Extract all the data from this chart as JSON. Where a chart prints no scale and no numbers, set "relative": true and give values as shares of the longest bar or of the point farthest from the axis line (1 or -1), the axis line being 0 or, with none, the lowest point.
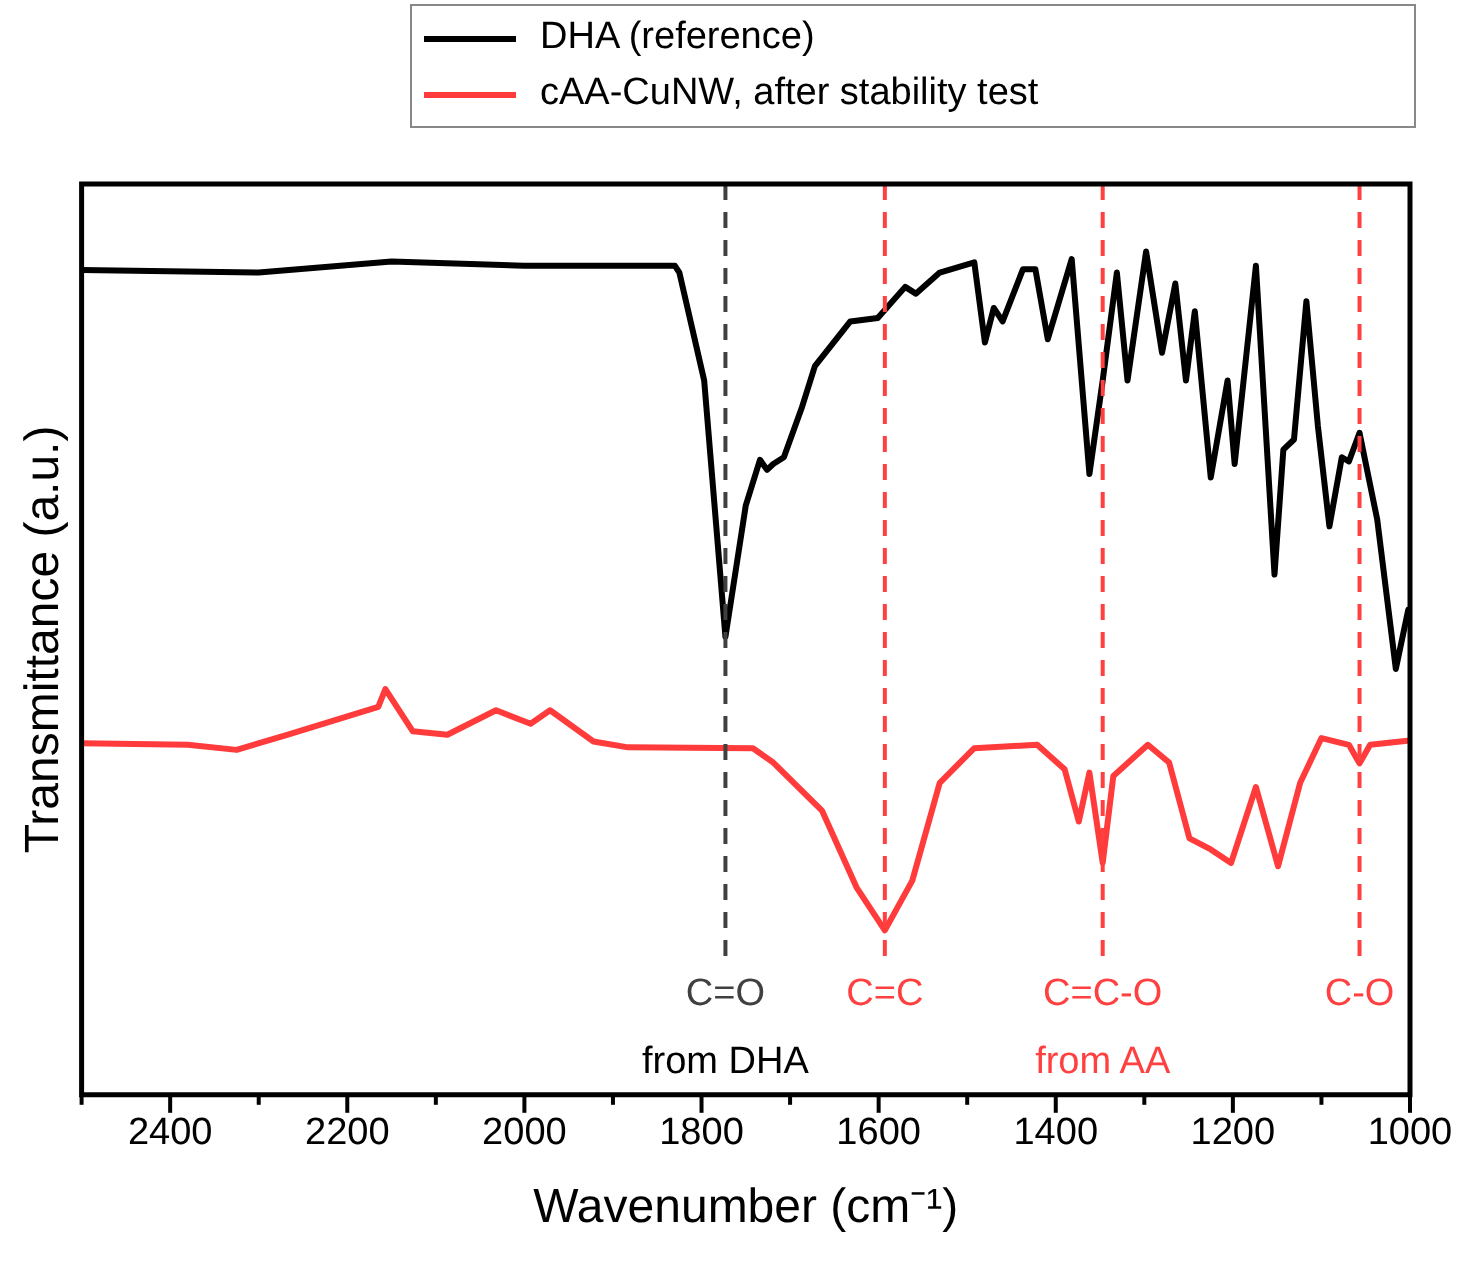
{
  "chart_data": {
    "type": "line",
    "relative": true,
    "xlabel": "Wavenumber (cm⁻¹)",
    "ylabel": "Transmittance (a.u.)",
    "xlim": [
      2500,
      1000
    ],
    "xticks": [
      {
        "value": 2500,
        "label": null
      },
      2400,
      {
        "value": 2300,
        "label": null
      },
      2200,
      {
        "value": 2100,
        "label": null
      },
      2000,
      {
        "value": 1900,
        "label": null
      },
      1800,
      {
        "value": 1700,
        "label": null
      },
      1600,
      {
        "value": 1500,
        "label": null
      },
      1400,
      {
        "value": 1300,
        "label": null
      },
      1200,
      {
        "value": 1100,
        "label": null
      },
      1000
    ],
    "legend": "top",
    "grid": false,
    "marker": "none",
    "line_style": "solid",
    "series": [
      {
        "name": "DHA (reference)",
        "color": "#000000",
        "x": [
          2500,
          2300,
          2150,
          2000,
          1830,
          1825,
          1797,
          1773,
          1750,
          1734,
          1726,
          1719,
          1707,
          1687,
          1672,
          1632,
          1601,
          1570,
          1558,
          1531,
          1492,
          1480,
          1470,
          1460,
          1437,
          1423,
          1409,
          1382,
          1362,
          1347,
          1331,
          1319,
          1298,
          1280,
          1265,
          1253,
          1243,
          1225,
          1206,
          1198,
          1174,
          1153,
          1143,
          1131,
          1117,
          1104,
          1091,
          1077,
          1069,
          1057,
          1037,
          1016,
          1002
        ],
        "values": [
          0.978,
          0.975,
          0.988,
          0.983,
          0.983,
          0.975,
          0.847,
          0.543,
          0.699,
          0.753,
          0.741,
          0.748,
          0.756,
          0.814,
          0.864,
          0.917,
          0.921,
          0.958,
          0.95,
          0.975,
          0.987,
          0.892,
          0.933,
          0.917,
          0.979,
          0.979,
          0.896,
          0.991,
          0.736,
          0.847,
          0.975,
          0.847,
          1.0,
          0.88,
          0.962,
          0.847,
          0.929,
          0.732,
          0.847,
          0.748,
          0.983,
          0.617,
          0.765,
          0.777,
          0.941,
          0.793,
          0.674,
          0.756,
          0.751,
          0.785,
          0.682,
          0.505,
          0.575
        ]
      },
      {
        "name": "cAA-CuNW, after stability test",
        "color": "#ff3b3b",
        "x": [
          2500,
          2380,
          2325,
          2267,
          2165,
          2157,
          2126,
          2087,
          2032,
          1993,
          1971,
          1922,
          1883,
          1742,
          1719,
          1664,
          1625,
          1593,
          1562,
          1531,
          1492,
          1421,
          1390,
          1374,
          1362,
          1347,
          1335,
          1296,
          1272,
          1249,
          1225,
          1202,
          1174,
          1149,
          1124,
          1100,
          1069,
          1057,
          1045,
          1000
        ],
        "values": [
          0.417,
          0.415,
          0.409,
          0.427,
          0.46,
          0.481,
          0.431,
          0.427,
          0.456,
          0.44,
          0.456,
          0.419,
          0.412,
          0.411,
          0.394,
          0.337,
          0.246,
          0.195,
          0.254,
          0.37,
          0.411,
          0.415,
          0.386,
          0.324,
          0.382,
          0.275,
          0.378,
          0.415,
          0.394,
          0.304,
          0.291,
          0.275,
          0.365,
          0.271,
          0.37,
          0.423,
          0.415,
          0.393,
          0.415,
          0.42
        ]
      }
    ],
    "ref_lines": [
      {
        "axis": "x",
        "value": 1773,
        "label": "C=O",
        "color": "#404040",
        "line_style": "dashed"
      },
      {
        "axis": "x",
        "value": 1593,
        "label": "C=C",
        "color": "#ff4040",
        "line_style": "dashed"
      },
      {
        "axis": "x",
        "value": 1347,
        "label": "C=C-O",
        "color": "#ff4040",
        "line_style": "dashed"
      },
      {
        "axis": "x",
        "value": 1057,
        "label": "C-O",
        "color": "#ff4040",
        "line_style": "dashed"
      }
    ],
    "annotations": [
      "from DHA",
      "from AA"
    ]
  }
}
